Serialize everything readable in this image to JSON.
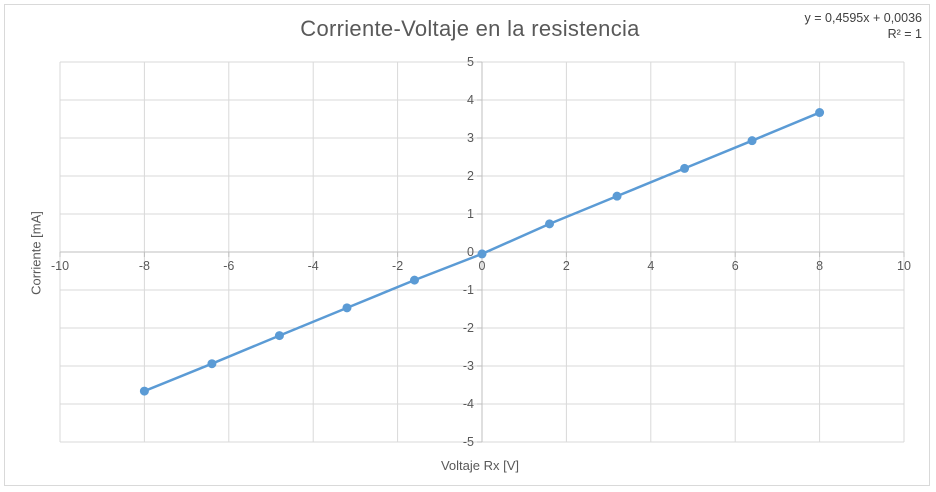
{
  "chart_data": {
    "type": "scatter",
    "title": "Corriente-Voltaje en la resistencia",
    "xlabel": "Voltaje Rx [V]",
    "ylabel": "Corriente [mA]",
    "xlim": [
      -10,
      10
    ],
    "ylim": [
      -5,
      5
    ],
    "x_ticks": [
      -10,
      -8,
      -6,
      -4,
      -2,
      0,
      2,
      4,
      6,
      8,
      10
    ],
    "y_ticks": [
      -5,
      -4,
      -3,
      -2,
      -1,
      0,
      1,
      2,
      3,
      4,
      5
    ],
    "x_tick_labels": [
      "-10",
      "-8",
      "-6",
      "-4",
      "-2",
      "0",
      "2",
      "4",
      "6",
      "8",
      "10"
    ],
    "y_tick_labels": [
      "-5",
      "-4",
      "-3",
      "-2",
      "-1",
      "0",
      "1",
      "2",
      "3",
      "4",
      "5"
    ],
    "grid": true,
    "series": [
      {
        "x": [
          -8,
          -6.4,
          -4.8,
          -3.2,
          -1.6,
          0,
          1.6,
          3.2,
          4.8,
          6.4,
          8
        ],
        "y": [
          -3.66,
          -2.94,
          -2.2,
          -1.47,
          -0.74,
          -0.05,
          0.74,
          1.47,
          2.2,
          2.93,
          3.67
        ],
        "color": "#5b9bd5"
      }
    ],
    "trendline": {
      "equation": "y = 0,4595x + 0,0036",
      "r_squared": "R² = 1",
      "slope": 0.4595,
      "intercept": 0.0036
    }
  }
}
